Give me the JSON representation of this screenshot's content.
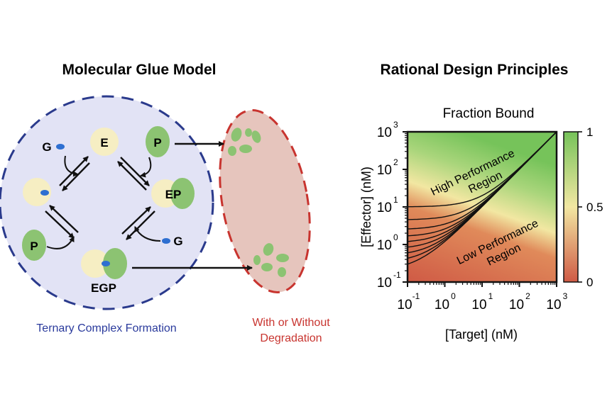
{
  "left_panel": {
    "title": "Molecular Glue Model",
    "caption": "Ternary Complex Formation",
    "species": {
      "E": "E",
      "P": "P",
      "EP": "EP",
      "EGP": "EGP",
      "G": "G"
    },
    "side_caption_line1": "With or Without",
    "side_caption_line2": "Degradation"
  },
  "right_panel": {
    "title": "Rational Design Principles",
    "colors": {
      "high": "#76c35a",
      "mid": "#f2e7a2",
      "low": "#cf5a45"
    },
    "chart_data": {
      "type": "heatmap",
      "title": "Fraction Bound",
      "xlabel": "[Target] (nM)",
      "ylabel": "[Effector] (nM)",
      "x_scale": "log",
      "y_scale": "log",
      "xlim": [
        0.1,
        1000
      ],
      "ylim": [
        0.1,
        1000
      ],
      "x_ticks": [
        {
          "base": "10",
          "exp": "-1"
        },
        {
          "base": "10",
          "exp": "0"
        },
        {
          "base": "10",
          "exp": "1"
        },
        {
          "base": "10",
          "exp": "2"
        },
        {
          "base": "10",
          "exp": "3"
        }
      ],
      "y_ticks": [
        {
          "base": "10",
          "exp": "-1"
        },
        {
          "base": "10",
          "exp": "0"
        },
        {
          "base": "10",
          "exp": "1"
        },
        {
          "base": "10",
          "exp": "2"
        },
        {
          "base": "10",
          "exp": "3"
        }
      ],
      "colorbar": {
        "min": 0,
        "max": 1,
        "ticks": [
          "0",
          "0.5",
          "1"
        ]
      },
      "contour_low_asymptotes": [
        0.2,
        0.33,
        0.5,
        0.75,
        1.1,
        1.6,
        2.5,
        4.5,
        10
      ],
      "annotations": {
        "high_line1": "High Performance",
        "high_line2": "Region",
        "low_line1": "Low Performance",
        "low_line2": "Region"
      }
    }
  }
}
